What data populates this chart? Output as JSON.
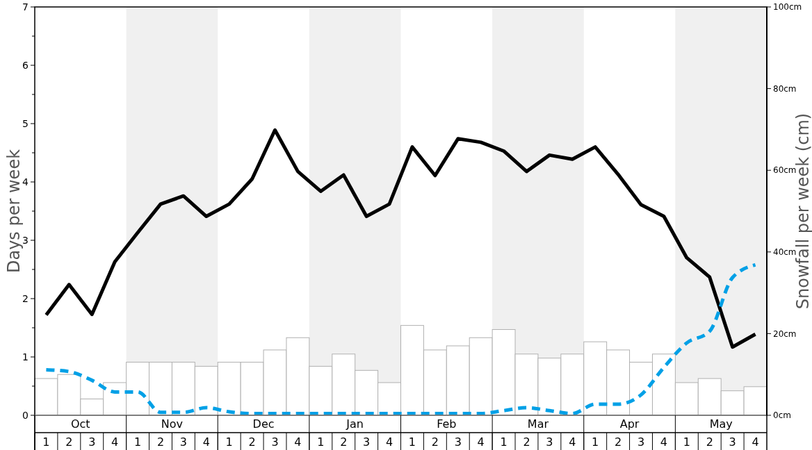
{
  "chart_data": {
    "type": "bar",
    "ylabel": "Days per week",
    "y2label": "Snowfall per week (cm)",
    "categories": [
      "1",
      "2",
      "3",
      "4",
      "1",
      "2",
      "3",
      "4",
      "1",
      "2",
      "3",
      "4",
      "1",
      "2",
      "3",
      "4",
      "1",
      "2",
      "3",
      "4",
      "1",
      "2",
      "3",
      "4",
      "1",
      "2",
      "3",
      "4",
      "1",
      "2",
      "3",
      "4"
    ],
    "annotations": [
      "Oct",
      "Nov",
      "Dec",
      "Jan",
      "Feb",
      "Mar",
      "Apr",
      "May"
    ],
    "series": [
      {
        "axis": "y2",
        "color": "#ffffff",
        "values": [
          9,
          10,
          4,
          8,
          13,
          13,
          13,
          12,
          13,
          13,
          16,
          19,
          12,
          15,
          11,
          8,
          22,
          16,
          17,
          19,
          21,
          15,
          14,
          15,
          18,
          16,
          13,
          15,
          8,
          9,
          6,
          7
        ]
      },
      {
        "type": "line",
        "color": "#000000",
        "line_style": "solid",
        "values": [
          1.72,
          2.24,
          1.73,
          2.63,
          3.13,
          3.62,
          3.76,
          3.41,
          3.62,
          4.05,
          4.89,
          4.18,
          3.84,
          4.12,
          3.41,
          3.62,
          4.6,
          4.11,
          4.74,
          4.68,
          4.53,
          4.18,
          4.46,
          4.39,
          4.6,
          4.13,
          3.61,
          3.41,
          2.7,
          2.37,
          1.17,
          1.39
        ]
      },
      {
        "type": "line",
        "color": "#00a0e6",
        "line_style": "dashed",
        "values": [
          0.78,
          0.75,
          0.6,
          0.4,
          0.4,
          0.05,
          0.05,
          0.13,
          0.06,
          0.03,
          0.03,
          0.03,
          0.03,
          0.03,
          0.03,
          0.03,
          0.03,
          0.03,
          0.03,
          0.03,
          0.08,
          0.13,
          0.08,
          0.03,
          0.19,
          0.19,
          0.35,
          0.82,
          1.24,
          1.44,
          2.36,
          2.58
        ]
      }
    ],
    "ylim": [
      0,
      7
    ],
    "yticks": [
      0,
      {
        "value": 0.5,
        "label": null
      },
      1,
      {
        "value": 1.5,
        "label": null
      },
      2,
      {
        "value": 2.5,
        "label": null
      },
      3,
      {
        "value": 3.5,
        "label": null
      },
      4,
      {
        "value": 4.5,
        "label": null
      },
      5,
      {
        "value": 5.5,
        "label": null
      },
      6,
      {
        "value": 6.5,
        "label": null
      },
      7
    ],
    "y2lim": [
      0,
      100
    ],
    "y2ticks": [
      {
        "value": 0,
        "label": "0cm"
      },
      {
        "value": 20,
        "label": "20cm"
      },
      {
        "value": 40,
        "label": "40cm"
      },
      {
        "value": 60,
        "label": "60cm"
      },
      {
        "value": 80,
        "label": "80cm"
      },
      {
        "value": 100,
        "label": "100cm"
      }
    ],
    "grid": false,
    "marker": "none"
  }
}
